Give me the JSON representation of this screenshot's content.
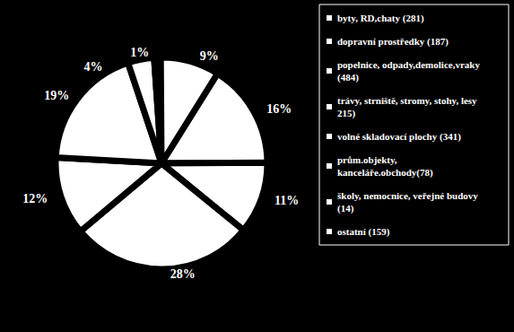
{
  "chart_data": {
    "type": "pie",
    "categories": [
      "byty, RD,chaty (281)",
      "dopravní prostředky (187)",
      "popelnice, odpady,demolice,vraky (484)",
      "trávy, strniště, stromy, stohy, lesy 215)",
      "volné skladovací plochy (341)",
      "prům.objekty,kanceláře.obchody(78)",
      "školy, nemocnice, veřejné budovy (14)",
      "ostatní (159)"
    ],
    "values": [
      16,
      11,
      28,
      12,
      19,
      4,
      1,
      9
    ],
    "value_labels": [
      "16%",
      "11%",
      "28%",
      "12%",
      "19%",
      "4%",
      "1%",
      "9%"
    ],
    "color": "#ffffff",
    "data_labels": true,
    "legend": "right"
  }
}
